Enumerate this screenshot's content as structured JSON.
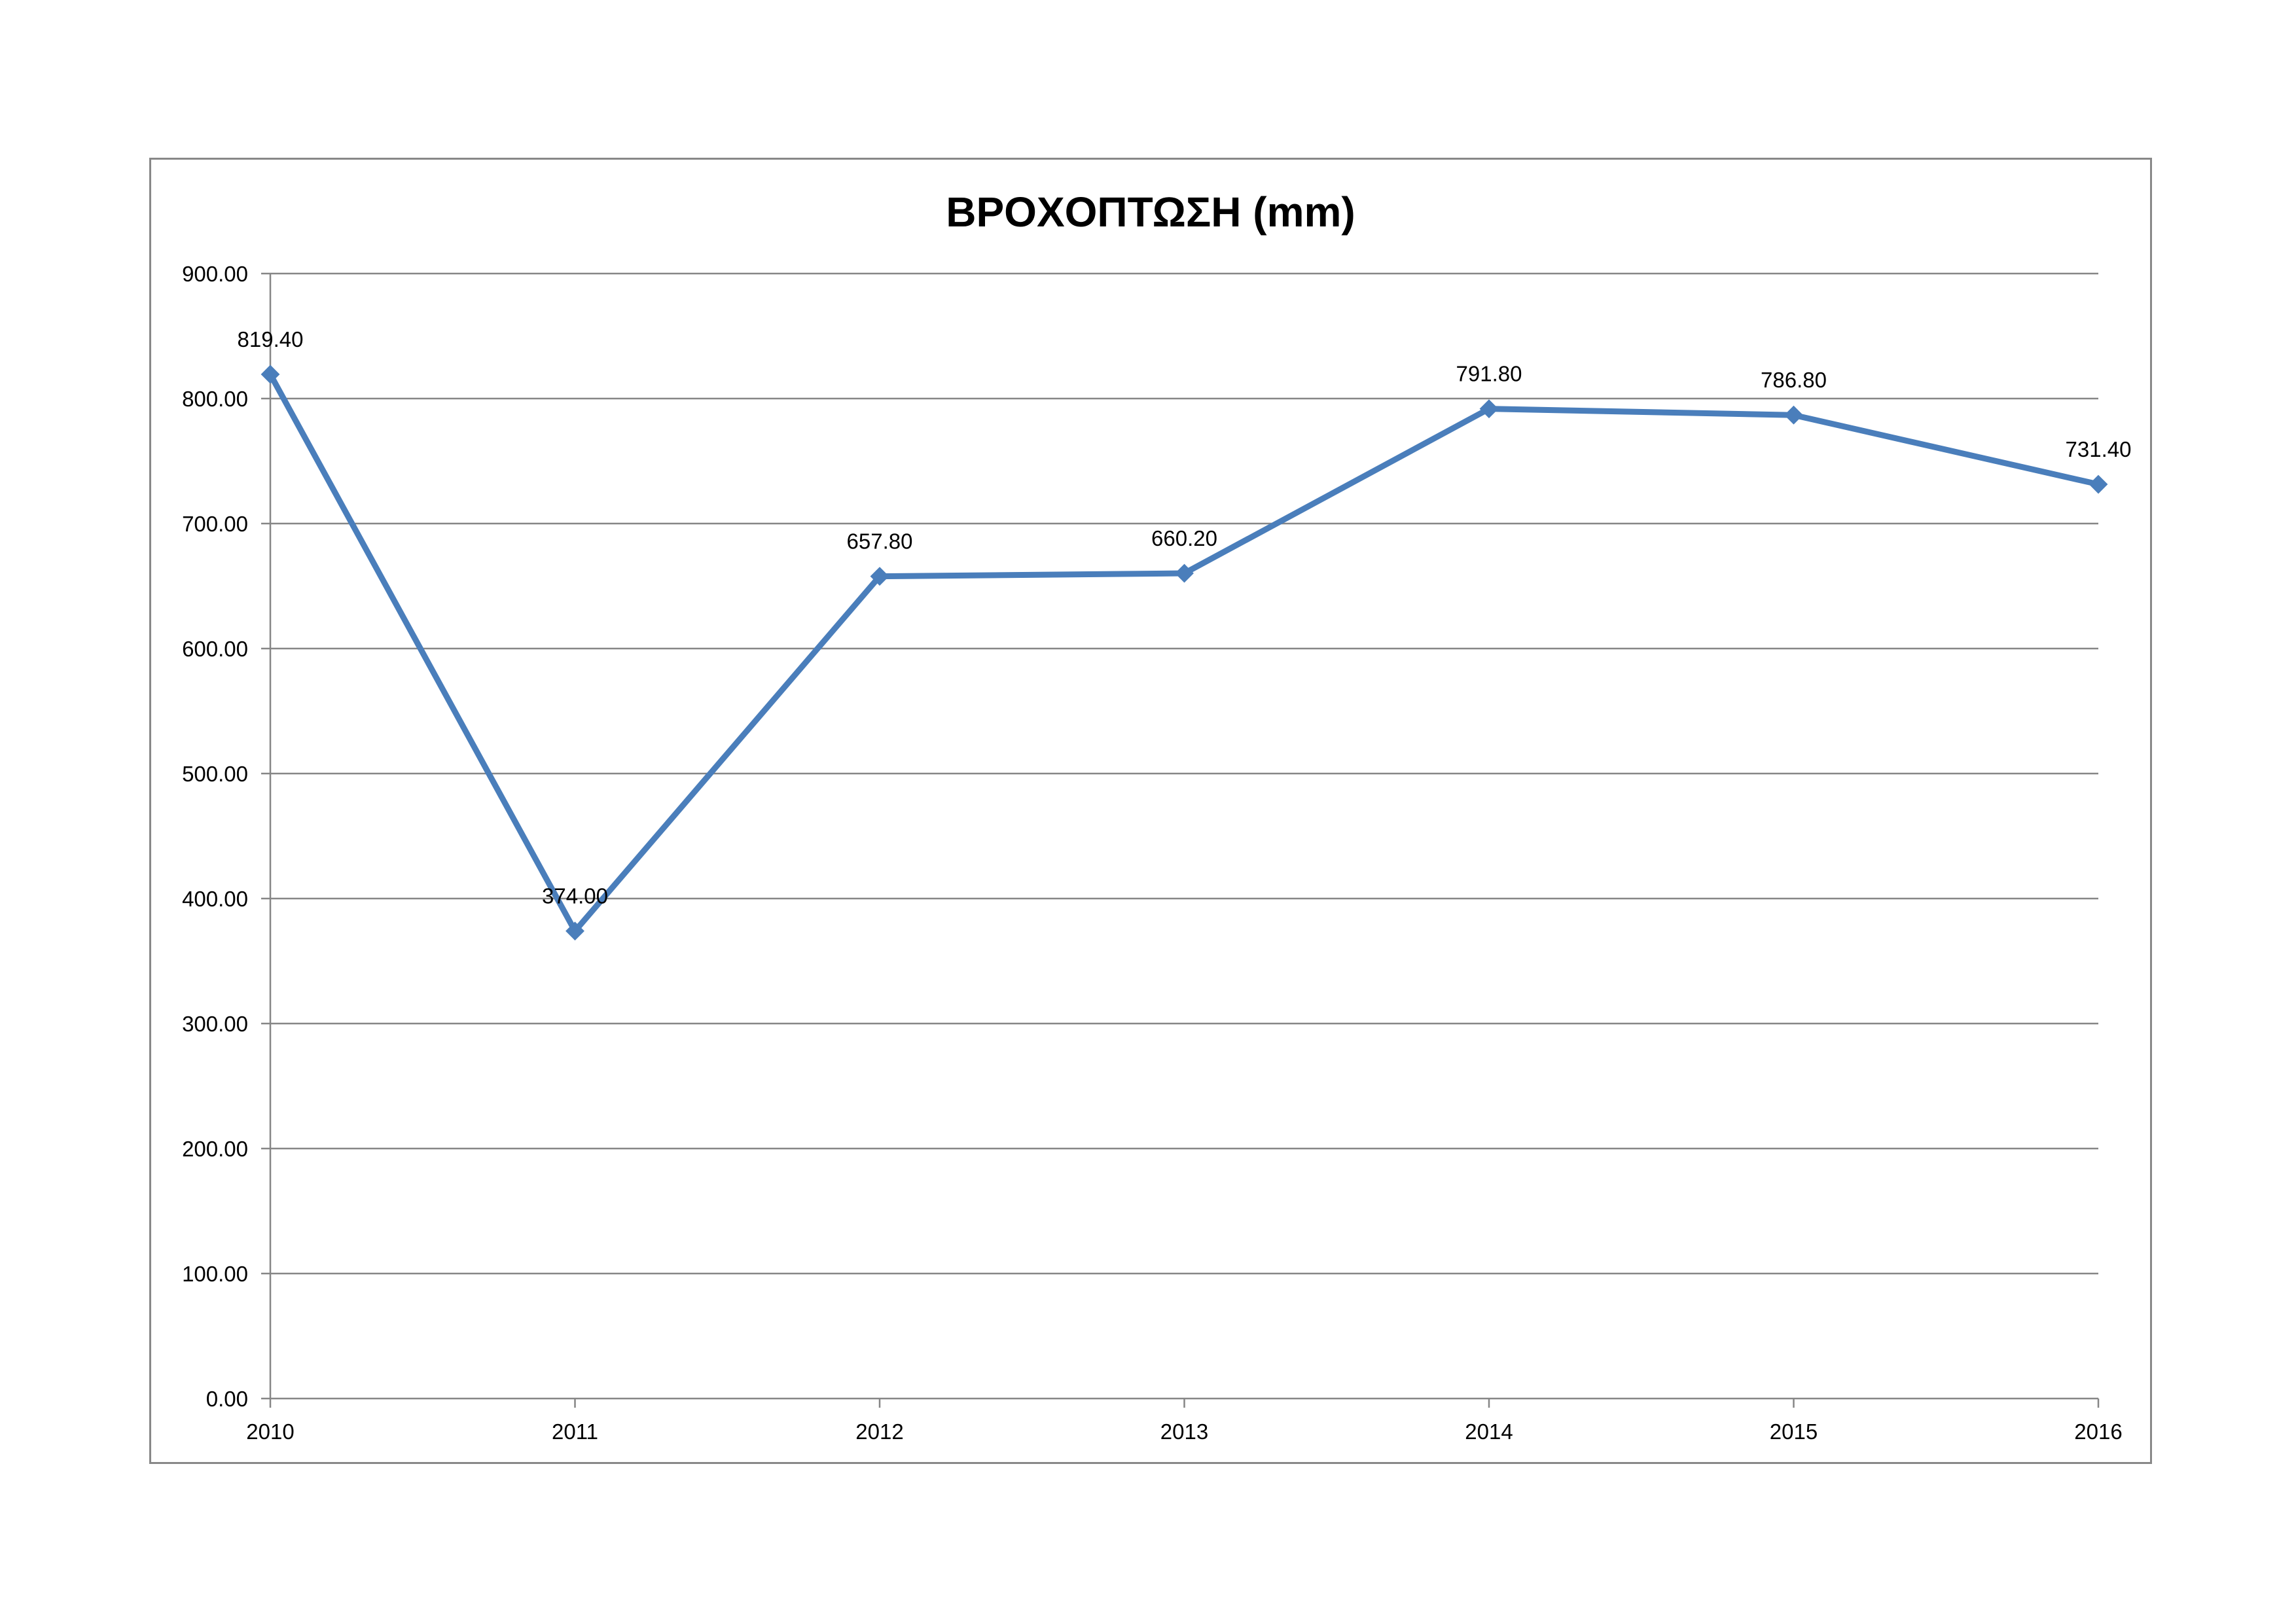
{
  "chart_data": {
    "type": "line",
    "title": "ΒΡΟΧΟΠΤΩΣΗ (mm)",
    "xlabel": "",
    "ylabel": "",
    "categories": [
      "2010",
      "2011",
      "2012",
      "2013",
      "2014",
      "2015",
      "2016"
    ],
    "series": [
      {
        "values": [
          819.4,
          374.0,
          657.8,
          660.2,
          791.8,
          786.8,
          731.4
        ],
        "data_labels": [
          "819.40",
          "374.00",
          "657.80",
          "660.20",
          "791.80",
          "786.80",
          "731.40"
        ],
        "color": "#4a7ebb",
        "marker": "diamond"
      }
    ],
    "ylim": [
      0,
      900
    ],
    "y_ticks": [
      0,
      100,
      200,
      300,
      400,
      500,
      600,
      700,
      800,
      900
    ],
    "y_tick_labels": [
      "0.00",
      "100.00",
      "200.00",
      "300.00",
      "400.00",
      "500.00",
      "600.00",
      "700.00",
      "800.00",
      "900.00"
    ],
    "grid": true,
    "legend": "none",
    "colors": {
      "line": "#4a7ebb",
      "grid": "#868686",
      "frame": "#888888"
    }
  }
}
